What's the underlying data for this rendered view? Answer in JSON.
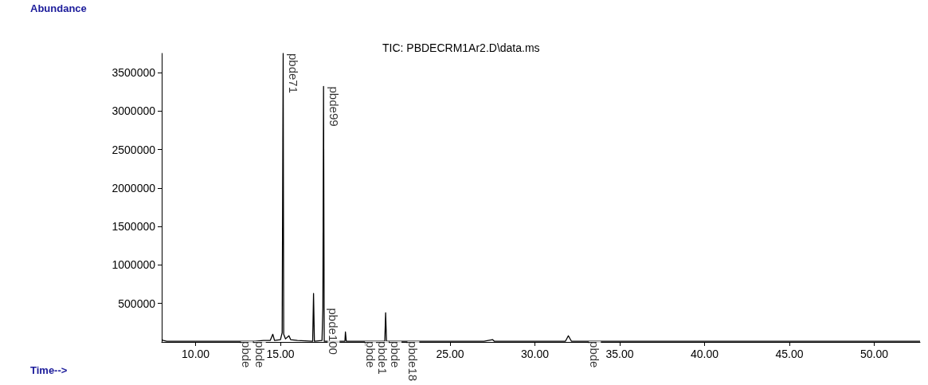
{
  "chart_data": {
    "type": "line",
    "title": "TIC: PBDECRM1Ar2.D\\data.ms",
    "xlabel": "Time-->",
    "ylabel": "Abundance",
    "x": [
      8.0,
      8.1,
      8.3,
      10.0,
      12.0,
      12.39,
      13.15,
      13.5,
      14.0,
      14.4,
      14.55,
      14.65,
      15.0,
      15.1,
      15.14,
      15.16,
      15.19,
      15.3,
      15.5,
      15.6,
      16.0,
      16.9,
      16.95,
      17.0,
      17.45,
      17.5,
      17.54,
      17.58,
      18.5,
      18.8,
      18.83,
      18.88,
      19.3,
      19.7,
      20.4,
      21.15,
      21.2,
      21.25,
      22.2,
      23.0,
      27.0,
      27.5,
      27.6,
      31.8,
      31.97,
      32.15,
      32.9,
      52.7
    ],
    "series": [
      {
        "color": "#000000",
        "values": [
          30000,
          20000,
          10000,
          10000,
          10000,
          10000,
          10000,
          10000,
          20000,
          20000,
          100000,
          20000,
          30000,
          120000,
          2600000,
          3750000,
          100000,
          40000,
          80000,
          30000,
          20000,
          10000,
          630000,
          10000,
          20000,
          440000,
          3320000,
          10000,
          10000,
          10000,
          130000,
          10000,
          10000,
          10000,
          10000,
          10000,
          380000,
          10000,
          10000,
          10000,
          10000,
          30000,
          10000,
          10000,
          80000,
          10000,
          10000,
          10000
        ]
      }
    ],
    "xlim": [
      8,
      52.7
    ],
    "ylim": [
      0,
      3750000
    ],
    "xticks": [
      {
        "value": 10,
        "label": "10.00"
      },
      {
        "value": 15,
        "label": "15.00"
      },
      {
        "value": 20,
        "label": null
      },
      {
        "value": 25,
        "label": "25.00"
      },
      {
        "value": 30,
        "label": "30.00"
      },
      {
        "value": 35,
        "label": "35.00"
      },
      {
        "value": 40,
        "label": "40.00"
      },
      {
        "value": 45,
        "label": "45.00"
      },
      {
        "value": 50,
        "label": "50.00"
      }
    ],
    "yticks": [
      500000,
      1000000,
      1500000,
      2000000,
      2500000,
      3000000,
      3500000
    ],
    "grid": false,
    "marker": "none",
    "line_style": "solid",
    "annotations": [
      {
        "text": "pbde71",
        "x": 15.16,
        "y": 3750000
      },
      {
        "text": "pbde99",
        "x": 17.54,
        "y": 3320000
      },
      {
        "text": "pbde100",
        "x": 17.5,
        "y": 440000
      },
      {
        "text": "pbde",
        "x": 12.39,
        "y": 10000
      },
      {
        "text": "pbde",
        "x": 13.15,
        "y": 10000
      },
      {
        "text": "pbde",
        "x": 19.7,
        "y": 10000
      },
      {
        "text": "pbde1",
        "x": 20.4,
        "y": 10000
      },
      {
        "text": "pbde",
        "x": 21.15,
        "y": 10000
      },
      {
        "text": "pbde18",
        "x": 22.2,
        "y": 10000
      },
      {
        "text": "pbde",
        "x": 32.9,
        "y": 10000
      }
    ]
  }
}
